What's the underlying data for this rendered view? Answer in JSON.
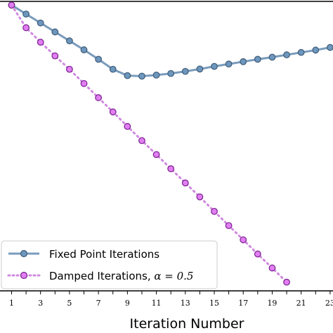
{
  "chart_data": {
    "type": "line",
    "title": "",
    "xlabel": "Iteration Number",
    "ylabel": "",
    "xlim": [
      0.2,
      23.2
    ],
    "ylim": [
      -0.1,
      1.0
    ],
    "x_ticks": [
      1,
      2,
      3,
      4,
      5,
      6,
      7,
      8,
      9,
      10,
      11,
      12,
      13,
      14,
      15,
      16,
      17,
      18,
      19,
      20,
      21,
      22,
      23
    ],
    "x_tick_labels": [
      "1",
      "3",
      "5",
      "7",
      "9",
      "11",
      "13",
      "15",
      "17",
      "19",
      "21",
      "23"
    ],
    "grid": false,
    "legend_placement": "bottom-left",
    "series": [
      {
        "name": "Fixed Point Iterations",
        "color": "#7a9cbc",
        "marker_fill": "#6d97bd",
        "marker_edge": "#3e5a78",
        "style": "solid",
        "x": [
          1,
          2,
          3,
          4,
          5,
          6,
          7,
          8,
          9,
          10,
          11,
          12,
          13,
          14,
          15,
          16,
          17,
          18,
          19,
          20,
          21,
          22,
          23
        ],
        "y": [
          0.986,
          0.952,
          0.918,
          0.884,
          0.85,
          0.816,
          0.78,
          0.742,
          0.718,
          0.716,
          0.72,
          0.726,
          0.734,
          0.743,
          0.753,
          0.762,
          0.771,
          0.78,
          0.788,
          0.797,
          0.806,
          0.815,
          0.825
        ]
      },
      {
        "name": "Damped Iterations, α = 0.5",
        "legend_prefix": "Damped Iterations, ",
        "legend_math": "α = 0.5",
        "color": "#d08ae0",
        "marker_fill": "#e07ef2",
        "marker_edge": "#7a1f8e",
        "style": "dotted",
        "x": [
          1,
          2,
          3,
          4,
          5,
          6,
          7,
          8,
          9,
          10,
          11,
          12,
          13,
          14,
          15,
          16,
          17,
          18,
          19,
          20
        ],
        "y": [
          0.986,
          0.9,
          0.845,
          0.793,
          0.742,
          0.688,
          0.634,
          0.58,
          0.525,
          0.471,
          0.418,
          0.364,
          0.31,
          0.257,
          0.202,
          0.148,
          0.094,
          0.04,
          -0.013,
          -0.067
        ]
      }
    ]
  }
}
